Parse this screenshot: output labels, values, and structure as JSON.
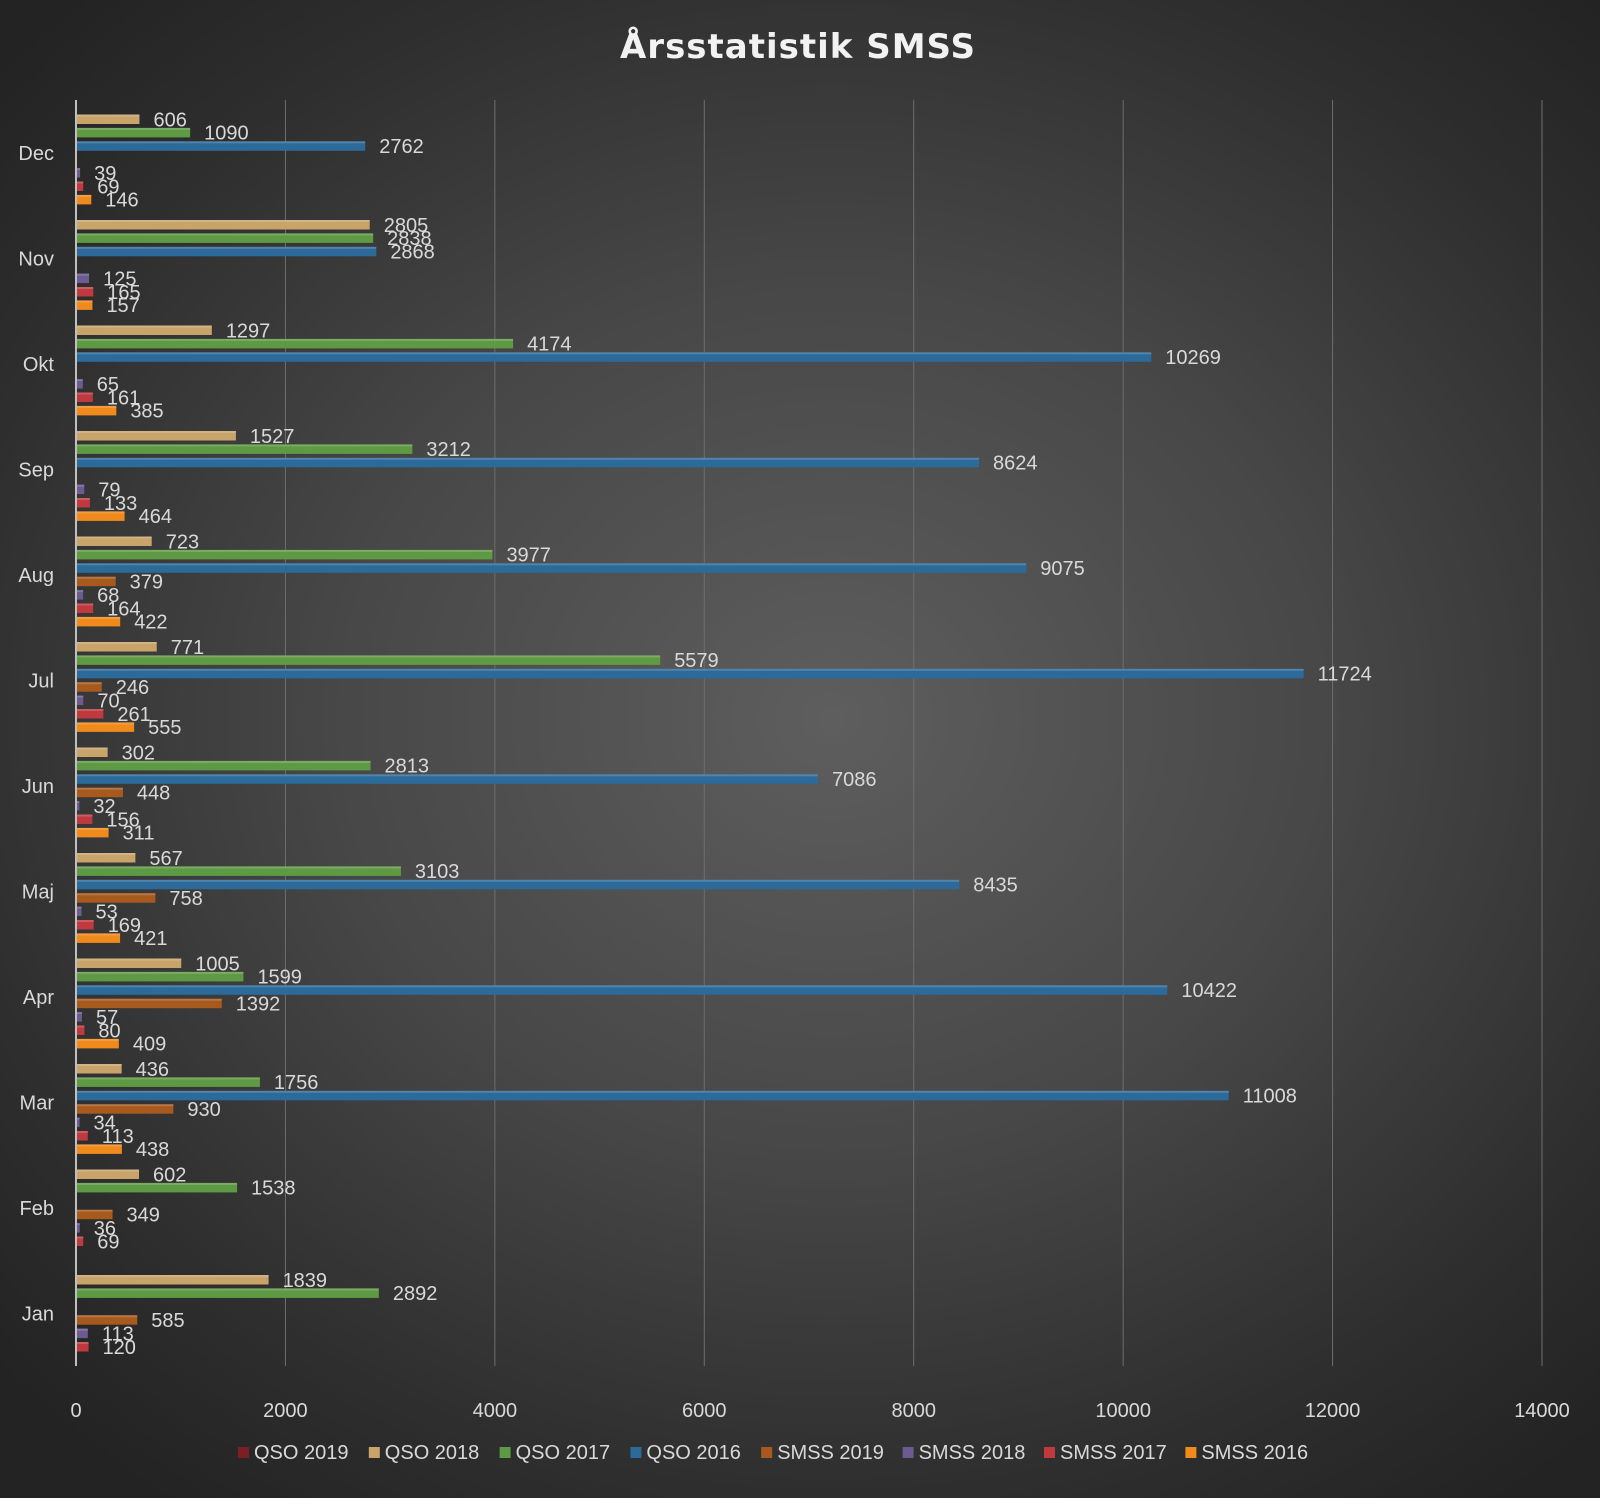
{
  "chart_data": {
    "type": "bar",
    "orientation": "horizontal",
    "title": "Årsstatistik SMSS",
    "xlabel": "",
    "ylabel": "",
    "xlim": [
      0,
      14000
    ],
    "x_ticks": [
      0,
      2000,
      4000,
      6000,
      8000,
      10000,
      12000,
      14000
    ],
    "grid": true,
    "legend_position": "bottom",
    "categories": [
      "Jan",
      "Feb",
      "Mar",
      "Apr",
      "Maj",
      "Jun",
      "Jul",
      "Aug",
      "Sep",
      "Okt",
      "Nov",
      "Dec"
    ],
    "series": [
      {
        "name": "QSO 2019",
        "color": "#7b1f24",
        "values": [
          null,
          null,
          null,
          null,
          null,
          null,
          null,
          null,
          null,
          null,
          null,
          null
        ]
      },
      {
        "name": "QSO 2018",
        "color": "#c9a46a",
        "values": [
          1839,
          602,
          436,
          1005,
          567,
          302,
          771,
          723,
          1527,
          1297,
          2805,
          606
        ]
      },
      {
        "name": "QSO 2017",
        "color": "#5e9a43",
        "values": [
          2892,
          1538,
          1756,
          1599,
          3103,
          2813,
          5579,
          3977,
          3212,
          4174,
          2838,
          1090
        ]
      },
      {
        "name": "QSO 2016",
        "color": "#2c6a9a",
        "values": [
          null,
          null,
          11008,
          10422,
          8435,
          7086,
          11724,
          9075,
          8624,
          10269,
          2868,
          2762
        ]
      },
      {
        "name": "SMSS 2019",
        "color": "#a85a1e",
        "values": [
          585,
          349,
          930,
          1392,
          758,
          448,
          246,
          379,
          null,
          null,
          null,
          null
        ]
      },
      {
        "name": "SMSS 2018",
        "color": "#6c5a90",
        "values": [
          113,
          36,
          34,
          57,
          53,
          32,
          70,
          68,
          79,
          65,
          125,
          39
        ]
      },
      {
        "name": "SMSS 2017",
        "color": "#c0393f",
        "values": [
          120,
          69,
          113,
          80,
          169,
          156,
          261,
          164,
          133,
          161,
          165,
          69
        ]
      },
      {
        "name": "SMSS 2016",
        "color": "#f08a1c",
        "values": [
          null,
          null,
          438,
          409,
          421,
          311,
          555,
          422,
          464,
          385,
          157,
          146
        ]
      }
    ]
  },
  "colors": {
    "axis_line": "#bfbfbf",
    "grid_line": "#6e6e6e"
  }
}
